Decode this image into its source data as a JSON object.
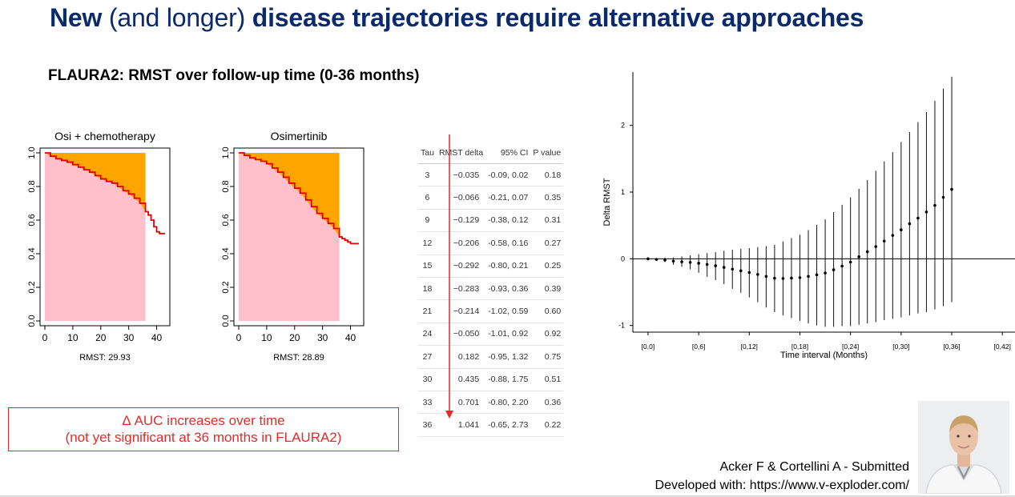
{
  "slide": {
    "title_bold1": "New",
    "title_normal": " (and longer) ",
    "title_bold2": "disease trajectories require alternative approaches",
    "subtitle": "FLAURA2: RMST over follow-up time (0-36 months)",
    "callout_line1": "Δ AUC increases over time",
    "callout_line2": "(not yet significant at 36 months in FLAURA2)",
    "credit_line1": "Acker F & Cortellini A - Submitted",
    "credit_line2": "Developed with: https://www.v-exploder.com/",
    "photo_icon": "person-photo",
    "colors": {
      "title": "#0b2a6b",
      "curve": "#e00000",
      "auc": "#ffc0cb",
      "delta": "#ffa500",
      "callout": "#e52a2a"
    }
  },
  "chart_data": [
    {
      "type": "area",
      "title": "Osi + chemotherapy",
      "xlabel": "RMST: 29.93",
      "xticks": [
        "0",
        "10",
        "20",
        "30",
        "40"
      ],
      "yticks": [
        "0.0",
        "0.2",
        "0.4",
        "0.6",
        "0.8",
        "1.0"
      ],
      "xlim": [
        0,
        43
      ],
      "ylim": [
        0,
        1
      ],
      "tau": 36,
      "x": [
        0,
        2,
        4,
        6,
        8,
        10,
        12,
        14,
        16,
        18,
        20,
        22,
        24,
        26,
        28,
        30,
        32,
        34,
        36,
        37,
        38,
        39,
        40,
        41,
        42,
        43
      ],
      "y": [
        1.0,
        0.98,
        0.965,
        0.955,
        0.945,
        0.93,
        0.915,
        0.9,
        0.885,
        0.865,
        0.845,
        0.83,
        0.82,
        0.8,
        0.775,
        0.755,
        0.73,
        0.7,
        0.65,
        0.63,
        0.6,
        0.56,
        0.53,
        0.52,
        0.52,
        0.52
      ]
    },
    {
      "type": "area",
      "title": "Osimertinib",
      "xlabel": "RMST: 28.89",
      "xticks": [
        "0",
        "10",
        "20",
        "30",
        "40"
      ],
      "yticks": [
        "0.0",
        "0.2",
        "0.4",
        "0.6",
        "0.8",
        "1.0"
      ],
      "xlim": [
        0,
        43
      ],
      "ylim": [
        0,
        1
      ],
      "tau": 36,
      "x": [
        0,
        2,
        4,
        6,
        8,
        10,
        12,
        14,
        16,
        18,
        20,
        22,
        24,
        26,
        28,
        30,
        32,
        34,
        36,
        37,
        38,
        39,
        40,
        41,
        42,
        43
      ],
      "y": [
        1.0,
        0.985,
        0.97,
        0.96,
        0.95,
        0.935,
        0.91,
        0.885,
        0.855,
        0.82,
        0.79,
        0.76,
        0.72,
        0.68,
        0.64,
        0.61,
        0.58,
        0.55,
        0.5,
        0.49,
        0.48,
        0.47,
        0.46,
        0.46,
        0.46,
        0.46
      ]
    },
    {
      "type": "table",
      "columns": [
        "Tau",
        "RMST delta",
        "95% CI",
        "P value"
      ],
      "rows": [
        [
          "3",
          "−0.035",
          "-0.09, 0.02",
          "0.18"
        ],
        [
          "6",
          "−0.066",
          "-0.21, 0.07",
          "0.35"
        ],
        [
          "9",
          "−0.129",
          "-0.38, 0.12",
          "0.31"
        ],
        [
          "12",
          "−0.206",
          "-0.58, 0.16",
          "0.27"
        ],
        [
          "15",
          "−0.292",
          "-0.80, 0.21",
          "0.25"
        ],
        [
          "18",
          "−0.283",
          "-0.93, 0.36",
          "0.39"
        ],
        [
          "21",
          "−0.214",
          "-1.02, 0.59",
          "0.60"
        ],
        [
          "24",
          "−0.050",
          "-1.01, 0.92",
          "0.92"
        ],
        [
          "27",
          "0.182",
          "-0.95, 1.32",
          "0.75"
        ],
        [
          "30",
          "0.435",
          "-0.88, 1.75",
          "0.51"
        ],
        [
          "33",
          "0.701",
          "-0.80, 2.20",
          "0.36"
        ],
        [
          "36",
          "1.041",
          "-0.65, 2.73",
          "0.22"
        ]
      ]
    },
    {
      "type": "scatter",
      "xlabel": "Time interval (Months)",
      "ylabel": "Delta RMST",
      "xlim": [
        0,
        42
      ],
      "ylim": [
        -1.1,
        2.8
      ],
      "xticks": [
        "[0,0]",
        "[0,6]",
        "[0,12]",
        "[0,18]",
        "[0,24]",
        "[0,30]",
        "[0,36]",
        "[0,42]"
      ],
      "yticks": [
        "-1",
        "0",
        "1",
        "2"
      ],
      "x": [
        0,
        1,
        2,
        3,
        4,
        5,
        6,
        7,
        8,
        9,
        10,
        11,
        12,
        13,
        14,
        15,
        16,
        17,
        18,
        19,
        20,
        21,
        22,
        23,
        24,
        25,
        26,
        27,
        28,
        29,
        30,
        31,
        32,
        33,
        34,
        35,
        36
      ],
      "y": [
        0,
        -0.01,
        -0.02,
        -0.035,
        -0.045,
        -0.055,
        -0.066,
        -0.085,
        -0.105,
        -0.129,
        -0.155,
        -0.18,
        -0.206,
        -0.235,
        -0.265,
        -0.292,
        -0.295,
        -0.29,
        -0.283,
        -0.265,
        -0.24,
        -0.214,
        -0.165,
        -0.11,
        -0.05,
        0.03,
        0.105,
        0.182,
        0.265,
        0.35,
        0.435,
        0.525,
        0.61,
        0.701,
        0.8,
        0.92,
        1.041
      ],
      "lower": [
        0,
        -0.03,
        -0.05,
        -0.09,
        -0.12,
        -0.16,
        -0.21,
        -0.27,
        -0.32,
        -0.38,
        -0.45,
        -0.51,
        -0.58,
        -0.65,
        -0.73,
        -0.8,
        -0.85,
        -0.89,
        -0.93,
        -0.97,
        -1.0,
        -1.02,
        -1.02,
        -1.01,
        -1.01,
        -0.99,
        -0.97,
        -0.95,
        -0.92,
        -0.9,
        -0.88,
        -0.85,
        -0.82,
        -0.8,
        -0.76,
        -0.71,
        -0.65
      ],
      "upper": [
        0,
        0.01,
        0.015,
        0.02,
        0.035,
        0.05,
        0.07,
        0.085,
        0.1,
        0.12,
        0.135,
        0.15,
        0.16,
        0.175,
        0.19,
        0.21,
        0.26,
        0.31,
        0.36,
        0.43,
        0.51,
        0.59,
        0.7,
        0.81,
        0.92,
        1.05,
        1.18,
        1.32,
        1.46,
        1.6,
        1.75,
        1.9,
        2.05,
        2.2,
        2.37,
        2.55,
        2.73
      ]
    }
  ]
}
